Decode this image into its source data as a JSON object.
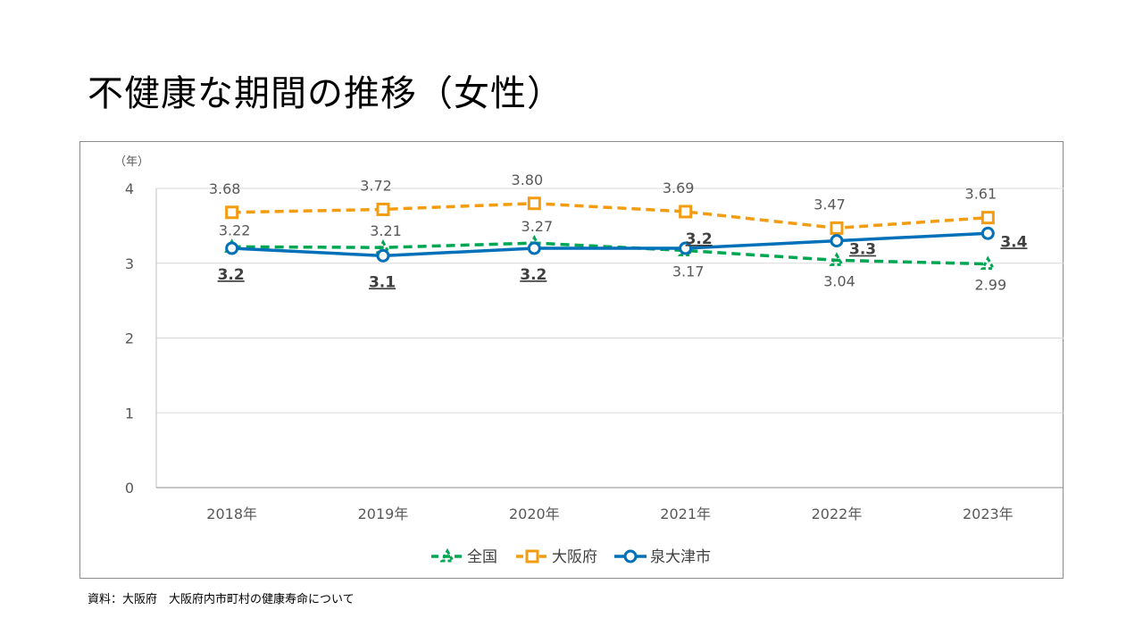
{
  "title": "不健康な期間の推移（女性）",
  "source": "資料：大阪府　大阪府内市町村の健康寿命について",
  "chart_data": {
    "type": "line",
    "y_unit": "（年）",
    "ylim": [
      0,
      4
    ],
    "yticks": [
      "0",
      "1",
      "2",
      "3",
      "4"
    ],
    "categories": [
      "2018年",
      "2019年",
      "2020年",
      "2021年",
      "2022年",
      "2023年"
    ],
    "series": [
      {
        "name": "全国",
        "color": "#00a651",
        "dash": true,
        "marker": "triangle",
        "values": [
          3.22,
          3.21,
          3.27,
          3.17,
          3.04,
          2.99
        ],
        "labels": [
          "3.22",
          "3.21",
          "3.27",
          "3.17",
          "3.04",
          "2.99"
        ]
      },
      {
        "name": "大阪府",
        "color": "#f39c12",
        "dash": true,
        "marker": "square",
        "values": [
          3.68,
          3.72,
          3.8,
          3.69,
          3.47,
          3.61
        ],
        "labels": [
          "3.68",
          "3.72",
          "3.80",
          "3.69",
          "3.47",
          "3.61"
        ]
      },
      {
        "name": "泉大津市",
        "color": "#0070b8",
        "dash": false,
        "marker": "circle",
        "values": [
          3.2,
          3.1,
          3.2,
          3.2,
          3.3,
          3.4
        ],
        "labels": [
          "3.2",
          "3.1",
          "3.2",
          "3.2",
          "3.3",
          "3.4"
        ]
      }
    ],
    "legend_position": "bottom"
  }
}
